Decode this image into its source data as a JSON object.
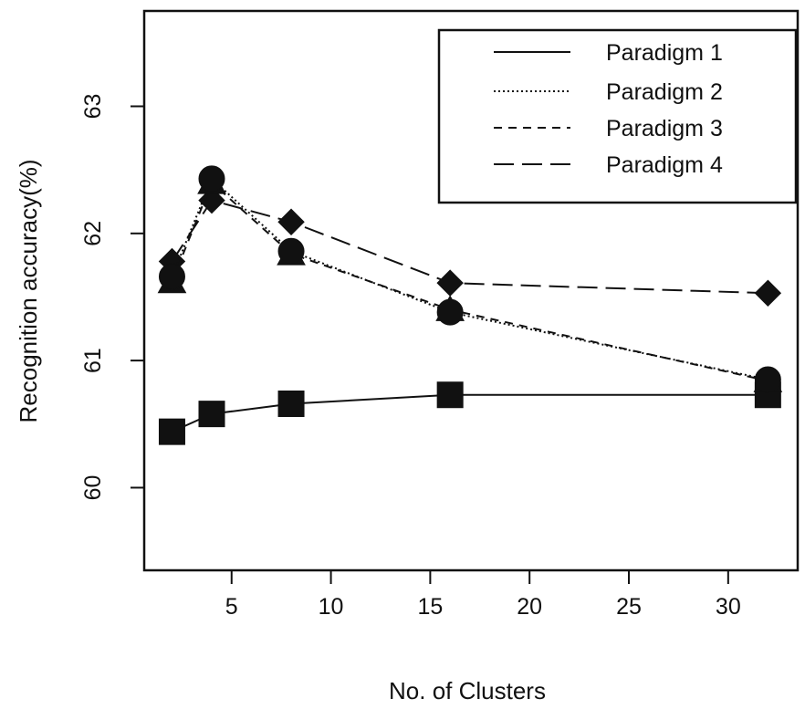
{
  "chart_data": {
    "type": "line",
    "title": "",
    "xlabel": "No. of Clusters",
    "ylabel": "Recognition accuracy(%)",
    "xlim": [
      0.6,
      33.5
    ],
    "ylim": [
      59.35,
      63.75
    ],
    "xticks": [
      5,
      10,
      15,
      20,
      25,
      30
    ],
    "yticks": [
      60,
      61,
      62,
      63
    ],
    "x": [
      2,
      4,
      8,
      16,
      32
    ],
    "legend_position": "top-right",
    "grid": false,
    "series": [
      {
        "name": "Paradigm 1",
        "dash": "solid",
        "marker": "square",
        "values": [
          60.44,
          60.58,
          60.66,
          60.73,
          60.73
        ]
      },
      {
        "name": "Paradigm 2",
        "dash": "dotted",
        "marker": "circle",
        "values": [
          61.66,
          62.43,
          61.86,
          61.38,
          60.85
        ]
      },
      {
        "name": "Paradigm 3",
        "dash": "short-dash",
        "marker": "triangle",
        "values": [
          61.62,
          62.4,
          61.84,
          61.4,
          60.84
        ]
      },
      {
        "name": "Paradigm 4",
        "dash": "long-dash",
        "marker": "diamond",
        "values": [
          61.78,
          62.26,
          62.09,
          61.61,
          61.53
        ]
      }
    ]
  }
}
